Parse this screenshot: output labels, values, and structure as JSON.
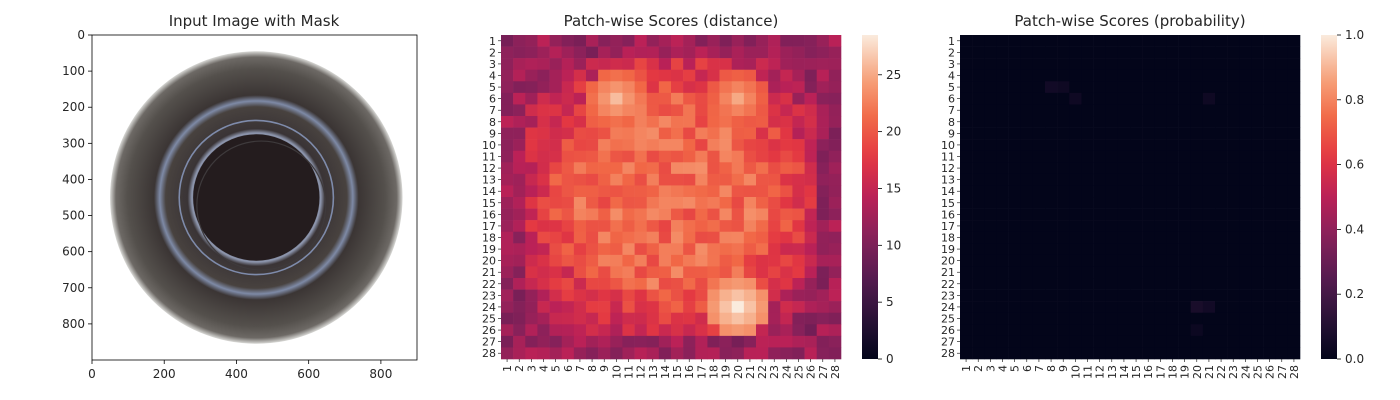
{
  "figure": {
    "panels": [
      {
        "id": "input",
        "title": "Input Image with Mask",
        "xticks": [
          0,
          200,
          400,
          600,
          800
        ],
        "yticks": [
          0,
          100,
          200,
          300,
          400,
          500,
          600,
          700,
          800
        ],
        "xlim": [
          0,
          900
        ],
        "ylim": [
          900,
          0
        ],
        "image": {
          "background": "#ffffff",
          "outer_rim_color": "#4a4644",
          "glass_color": "#2f2a2a",
          "inner_color": "#241c1e",
          "ring_highlight_color": "#8fa0c8",
          "outer_radius": 405,
          "inner_radius": 175,
          "center": [
            455,
            450
          ]
        }
      }
    ]
  },
  "chart_data": [
    {
      "type": "heatmap",
      "title": "Patch-wise Scores (distance)",
      "rows": 28,
      "cols": 28,
      "row_labels": [
        "1",
        "2",
        "3",
        "4",
        "5",
        "6",
        "7",
        "8",
        "9",
        "10",
        "11",
        "12",
        "13",
        "14",
        "15",
        "16",
        "17",
        "18",
        "19",
        "20",
        "21",
        "22",
        "23",
        "24",
        "25",
        "26",
        "27",
        "28"
      ],
      "col_labels": [
        "1",
        "2",
        "3",
        "4",
        "5",
        "6",
        "7",
        "8",
        "9",
        "10",
        "11",
        "12",
        "13",
        "14",
        "15",
        "16",
        "17",
        "18",
        "19",
        "20",
        "21",
        "22",
        "23",
        "24",
        "25",
        "26",
        "27",
        "28"
      ],
      "colorbar": {
        "min": 0,
        "max": 28.5,
        "ticks": [
          0,
          5,
          10,
          15,
          20,
          25
        ]
      },
      "colormap": "rocket",
      "pattern": {
        "border_value": 12,
        "center_value": 21,
        "bright_spots": [
          {
            "row": 6,
            "col": 10,
            "value": 26
          },
          {
            "row": 6,
            "col": 20,
            "value": 25
          },
          {
            "row": 24,
            "col": 20,
            "value": 28.5
          }
        ]
      }
    },
    {
      "type": "heatmap",
      "title": "Patch-wise Scores (probability)",
      "rows": 28,
      "cols": 28,
      "row_labels": [
        "1",
        "2",
        "3",
        "4",
        "5",
        "6",
        "7",
        "8",
        "9",
        "10",
        "11",
        "12",
        "13",
        "14",
        "15",
        "16",
        "17",
        "18",
        "19",
        "20",
        "21",
        "22",
        "23",
        "24",
        "25",
        "26",
        "27",
        "28"
      ],
      "col_labels": [
        "1",
        "2",
        "3",
        "4",
        "5",
        "6",
        "7",
        "8",
        "9",
        "10",
        "11",
        "12",
        "13",
        "14",
        "15",
        "16",
        "17",
        "18",
        "19",
        "20",
        "21",
        "22",
        "23",
        "24",
        "25",
        "26",
        "27",
        "28"
      ],
      "colorbar": {
        "min": 0.0,
        "max": 1.0,
        "ticks": [
          "0.0",
          "0.2",
          "0.4",
          "0.6",
          "0.8",
          "1.0"
        ]
      },
      "colormap": "rocket",
      "pattern": {
        "base_value": 0.0,
        "faint_spots": [
          {
            "row": 5,
            "col": 8,
            "value": 0.05
          },
          {
            "row": 5,
            "col": 9,
            "value": 0.04
          },
          {
            "row": 6,
            "col": 10,
            "value": 0.04
          },
          {
            "row": 6,
            "col": 21,
            "value": 0.04
          },
          {
            "row": 24,
            "col": 20,
            "value": 0.07
          },
          {
            "row": 24,
            "col": 21,
            "value": 0.05
          },
          {
            "row": 26,
            "col": 20,
            "value": 0.03
          }
        ]
      }
    }
  ]
}
